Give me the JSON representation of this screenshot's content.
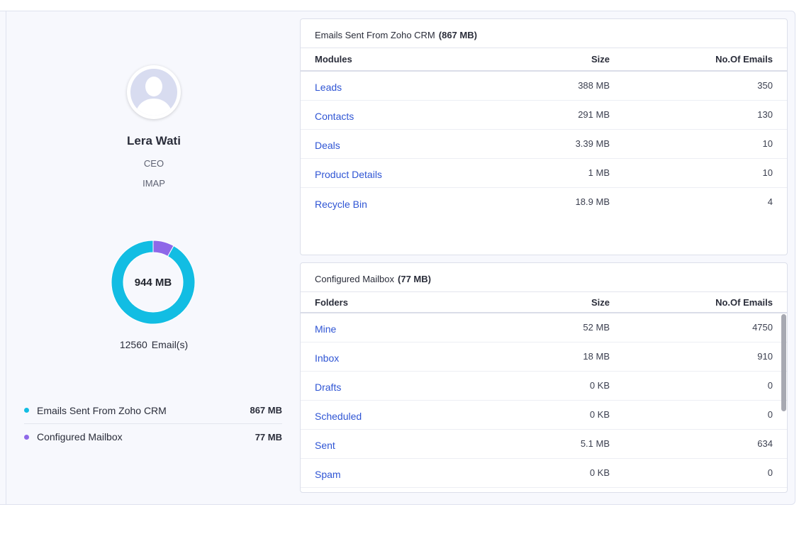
{
  "user": {
    "name": "Lera Wati",
    "role": "CEO",
    "account_type": "IMAP"
  },
  "storage": {
    "total_size": "944 MB",
    "email_count": "12560",
    "email_count_label": "Email(s)"
  },
  "chart_data": {
    "type": "pie",
    "categories": [
      "Emails Sent From Zoho CRM",
      "Configured Mailbox"
    ],
    "values": [
      867,
      77
    ],
    "unit": "MB",
    "colors": [
      "#12bde3",
      "#8e68e8"
    ]
  },
  "legend": [
    {
      "label": "Emails Sent From Zoho CRM",
      "size": "867 MB",
      "color": "#12bde3"
    },
    {
      "label": "Configured Mailbox",
      "size": "77 MB",
      "color": "#8e68e8"
    }
  ],
  "sent_table": {
    "title": "Emails Sent From Zoho CRM",
    "total": "(867 MB)",
    "headers": {
      "name": "Modules",
      "size": "Size",
      "count": "No.Of Emails"
    },
    "rows": [
      {
        "name": "Leads",
        "size": "388 MB",
        "count": "350"
      },
      {
        "name": "Contacts",
        "size": "291 MB",
        "count": "130"
      },
      {
        "name": "Deals",
        "size": "3.39 MB",
        "count": "10"
      },
      {
        "name": "Product Details",
        "size": "1 MB",
        "count": "10"
      },
      {
        "name": "Recycle Bin",
        "size": "18.9 MB",
        "count": "4"
      }
    ]
  },
  "mailbox_table": {
    "title": "Configured Mailbox",
    "total": "(77 MB)",
    "headers": {
      "name": "Folders",
      "size": "Size",
      "count": "No.Of Emails"
    },
    "rows": [
      {
        "name": "Mine",
        "size": "52 MB",
        "count": "4750"
      },
      {
        "name": "Inbox",
        "size": "18 MB",
        "count": "910"
      },
      {
        "name": "Drafts",
        "size": "0 KB",
        "count": "0"
      },
      {
        "name": "Scheduled",
        "size": "0 KB",
        "count": "0"
      },
      {
        "name": "Sent",
        "size": "5.1 MB",
        "count": "634"
      },
      {
        "name": "Spam",
        "size": "0 KB",
        "count": "0"
      }
    ]
  }
}
